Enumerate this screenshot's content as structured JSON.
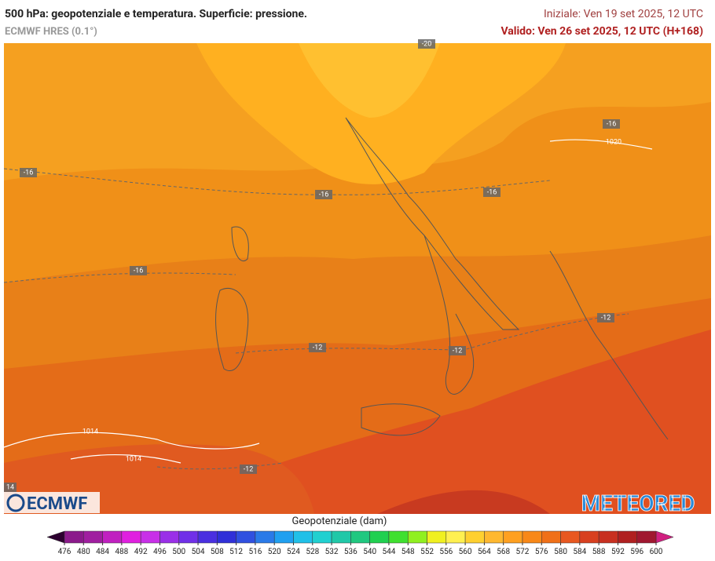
{
  "header": {
    "title": "500 hPa: geopotenziale e temperatura. Superficie: pressione.",
    "model": "ECMWF HRES (0.1°)",
    "initial": "Iniziale: Ven 19 set 2025, 12 UTC",
    "valid": "Valido: Ven 26 set 2025, 12 UTC (H+168)"
  },
  "map": {
    "labels": [
      "-20",
      "-16",
      "-16",
      "-16",
      "-16",
      "-16",
      "1020",
      "-12",
      "-12",
      "-12",
      "-12",
      "1014",
      "1014",
      "14"
    ]
  },
  "logos": {
    "left": "ECMWF",
    "right": "METEORED"
  },
  "legend": {
    "title": "Geopotenziale (dam)",
    "ticks": [
      476,
      480,
      484,
      488,
      492,
      496,
      500,
      504,
      508,
      512,
      516,
      520,
      524,
      528,
      532,
      536,
      540,
      544,
      548,
      552,
      556,
      560,
      564,
      568,
      572,
      576,
      580,
      584,
      588,
      592,
      596,
      600
    ],
    "colors": [
      "#8b1a8b",
      "#a01ea0",
      "#c020c0",
      "#e020e0",
      "#c830e8",
      "#9a30e8",
      "#7030e8",
      "#4a30e0",
      "#3030d8",
      "#3050e0",
      "#2a7ae8",
      "#20a0f0",
      "#20c0e8",
      "#20d0d0",
      "#20c8a8",
      "#20c880",
      "#20d050",
      "#40e030",
      "#90f020",
      "#f0f020",
      "#fff050",
      "#ffd030",
      "#ffb830",
      "#ffa020",
      "#f88818",
      "#f07018",
      "#e85820",
      "#d84020",
      "#c83020",
      "#b02020",
      "#a01830"
    ],
    "under_color": "#2d0030",
    "over_color": "#d02080"
  }
}
